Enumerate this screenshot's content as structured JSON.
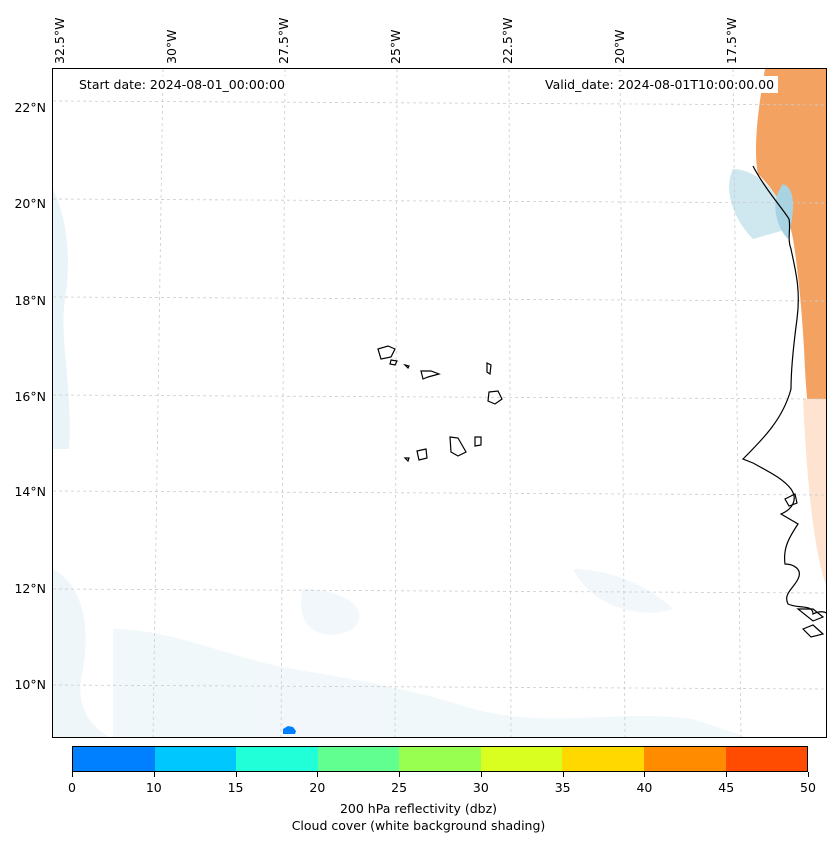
{
  "map": {
    "start_date": "Start date: 2024-08-01_00:00:00",
    "valid_date": "Valid_date: 2024-08-01T10:00:00.00",
    "lon_labels": [
      "32.5°W",
      "30°W",
      "27.5°W",
      "25°W",
      "22.5°W",
      "20°W",
      "17.5°W"
    ],
    "lat_labels": [
      "22°N",
      "20°N",
      "18°N",
      "16°N",
      "14°N",
      "12°N",
      "10°N"
    ],
    "region": "Cape Verde Islands and West African coast",
    "colors": {
      "coastline": "#000000",
      "gridline": "#cccccc",
      "cloud_shading": "#d6ebf2",
      "reflectivity_high": "#f4a261"
    }
  },
  "colorbar": {
    "ticks": [
      "0",
      "10",
      "15",
      "20",
      "25",
      "30",
      "35",
      "40",
      "45",
      "50"
    ],
    "colors": [
      "#0080ff",
      "#00c8ff",
      "#20ffd8",
      "#60ff90",
      "#98ff50",
      "#d8ff20",
      "#ffd800",
      "#ff8c00",
      "#ff4c00"
    ],
    "label_line1": "200 hPa reflectivity (dbz)",
    "label_line2": "Cloud cover (white background shading)"
  }
}
